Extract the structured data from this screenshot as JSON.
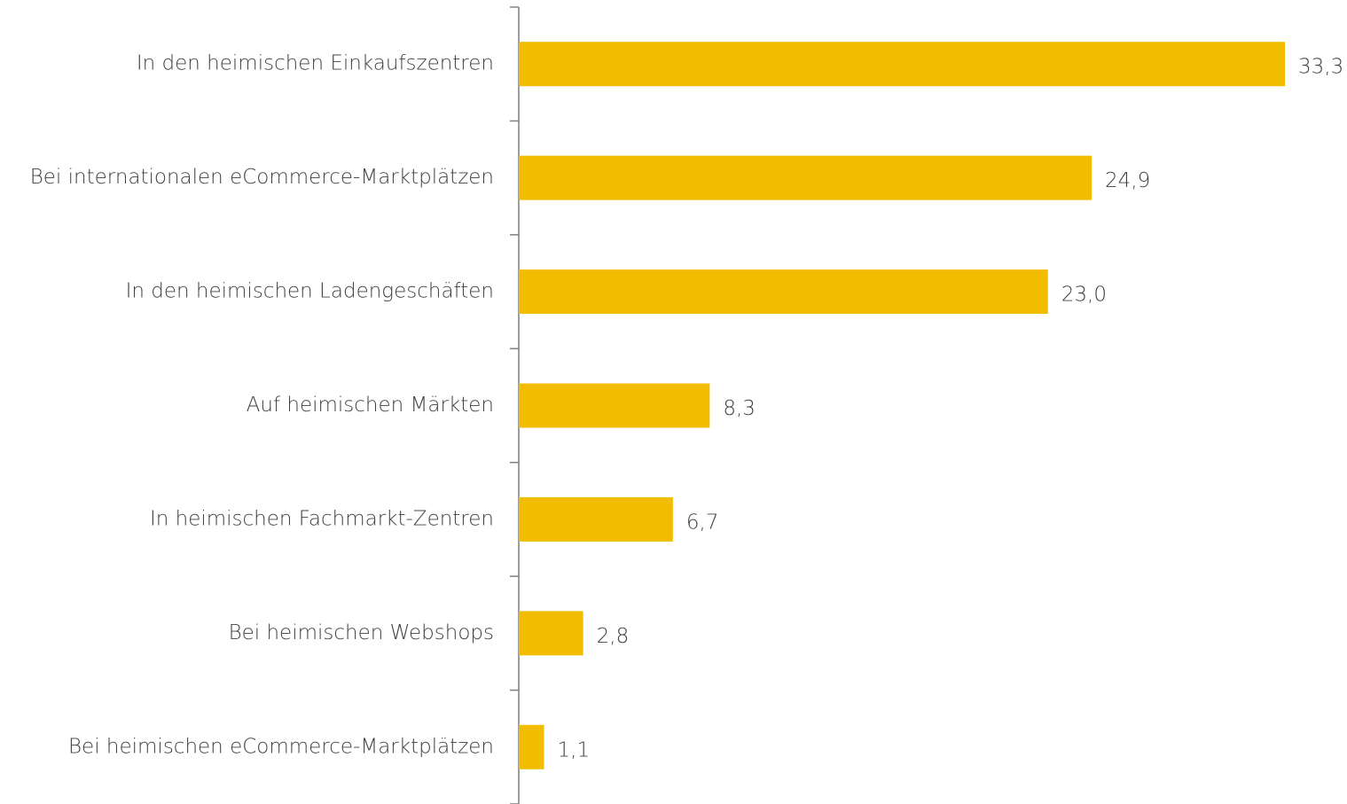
{
  "chart_data": {
    "type": "bar",
    "orientation": "horizontal",
    "categories": [
      "In den heimischen Einkaufszentren",
      "Bei internationalen eCommerce-Marktplätzen",
      "In den heimischen Ladengeschäften",
      "Auf heimischen Märkten",
      "In heimischen Fachmarkt-Zentren",
      "Bei heimischen Webshops",
      "Bei heimischen eCommerce-Marktplätzen"
    ],
    "values": [
      33.3,
      24.9,
      23.0,
      8.3,
      6.7,
      2.8,
      1.1
    ],
    "value_labels": [
      "33,3",
      "24,9",
      "23,0",
      "8,3",
      "6,7",
      "2,8",
      "1,1"
    ],
    "color": "#f2bd00"
  }
}
